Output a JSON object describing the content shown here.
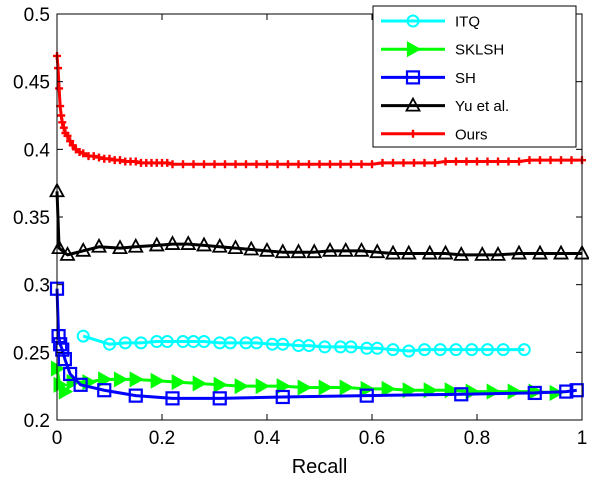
{
  "chart_data": {
    "type": "line",
    "title": "",
    "xlabel": "Recall",
    "ylabel": "",
    "xlim": [
      0,
      1
    ],
    "ylim": [
      0.2,
      0.5
    ],
    "grid": false,
    "legend_position": "top-right",
    "x_ticks": [
      "0",
      "0.2",
      "0.4",
      "0.6",
      "0.8",
      "1"
    ],
    "y_ticks": [
      "0.2",
      "0.25",
      "0.3",
      "0.35",
      "0.4",
      "0.45",
      "0.5"
    ],
    "series": [
      {
        "name": "ITQ",
        "color": "#00ffff",
        "marker": "circle",
        "x": [
          0.05,
          0.1,
          0.13,
          0.16,
          0.19,
          0.21,
          0.24,
          0.26,
          0.28,
          0.31,
          0.33,
          0.36,
          0.38,
          0.41,
          0.43,
          0.46,
          0.48,
          0.51,
          0.54,
          0.56,
          0.59,
          0.61,
          0.64,
          0.67,
          0.7,
          0.73,
          0.76,
          0.79,
          0.82,
          0.85,
          0.89
        ],
        "y": [
          0.262,
          0.256,
          0.257,
          0.257,
          0.258,
          0.258,
          0.258,
          0.258,
          0.258,
          0.257,
          0.257,
          0.257,
          0.257,
          0.256,
          0.256,
          0.255,
          0.255,
          0.254,
          0.254,
          0.254,
          0.253,
          0.253,
          0.252,
          0.251,
          0.252,
          0.252,
          0.252,
          0.252,
          0.252,
          0.252,
          0.252
        ]
      },
      {
        "name": "SKLSH",
        "color": "#00ff00",
        "marker": "triangle-right",
        "x": [
          0.0,
          0.005,
          0.015,
          0.03,
          0.06,
          0.09,
          0.12,
          0.15,
          0.19,
          0.23,
          0.27,
          0.31,
          0.35,
          0.39,
          0.43,
          0.47,
          0.51,
          0.55,
          0.59,
          0.63,
          0.67,
          0.71,
          0.75,
          0.79,
          0.83,
          0.87,
          0.91,
          0.95
        ],
        "y": [
          0.238,
          0.226,
          0.221,
          0.228,
          0.228,
          0.23,
          0.23,
          0.23,
          0.229,
          0.228,
          0.227,
          0.226,
          0.225,
          0.225,
          0.225,
          0.224,
          0.224,
          0.224,
          0.223,
          0.223,
          0.222,
          0.222,
          0.222,
          0.221,
          0.221,
          0.221,
          0.221,
          0.22
        ]
      },
      {
        "name": "SH",
        "color": "#0000ff",
        "marker": "square",
        "x": [
          0.0,
          0.003,
          0.006,
          0.01,
          0.015,
          0.025,
          0.045,
          0.09,
          0.15,
          0.22,
          0.31,
          0.43,
          0.59,
          0.77,
          0.91,
          0.97,
          0.99
        ],
        "y": [
          0.297,
          0.262,
          0.256,
          0.252,
          0.245,
          0.234,
          0.226,
          0.222,
          0.218,
          0.216,
          0.216,
          0.217,
          0.218,
          0.219,
          0.22,
          0.221,
          0.222
        ]
      },
      {
        "name": "Yu et al.",
        "color": "#000000",
        "marker": "triangle-up",
        "x": [
          0.0,
          0.004,
          0.02,
          0.05,
          0.08,
          0.12,
          0.15,
          0.19,
          0.22,
          0.25,
          0.28,
          0.31,
          0.34,
          0.37,
          0.4,
          0.43,
          0.46,
          0.49,
          0.52,
          0.55,
          0.58,
          0.61,
          0.64,
          0.67,
          0.71,
          0.74,
          0.77,
          0.81,
          0.84,
          0.88,
          0.92,
          0.96,
          1.0
        ],
        "y": [
          0.369,
          0.327,
          0.322,
          0.325,
          0.328,
          0.327,
          0.328,
          0.329,
          0.33,
          0.33,
          0.329,
          0.328,
          0.327,
          0.326,
          0.325,
          0.324,
          0.324,
          0.324,
          0.325,
          0.325,
          0.325,
          0.324,
          0.323,
          0.323,
          0.323,
          0.323,
          0.322,
          0.322,
          0.322,
          0.323,
          0.323,
          0.323,
          0.323
        ]
      },
      {
        "name": "Ours",
        "color": "#ff0000",
        "marker": "plus",
        "x": [
          0.0,
          0.002,
          0.004,
          0.006,
          0.008,
          0.01,
          0.013,
          0.016,
          0.02,
          0.025,
          0.03,
          0.036,
          0.043,
          0.05,
          0.06,
          0.07,
          0.08,
          0.09,
          0.1,
          0.11,
          0.12,
          0.13,
          0.14,
          0.15,
          0.16,
          0.17,
          0.18,
          0.19,
          0.2,
          0.21,
          0.22,
          0.24,
          0.26,
          0.28,
          0.3,
          0.32,
          0.34,
          0.36,
          0.38,
          0.4,
          0.42,
          0.44,
          0.46,
          0.48,
          0.5,
          0.52,
          0.54,
          0.56,
          0.58,
          0.6,
          0.62,
          0.64,
          0.66,
          0.68,
          0.7,
          0.72,
          0.74,
          0.76,
          0.78,
          0.8,
          0.82,
          0.84,
          0.86,
          0.88,
          0.9,
          0.92,
          0.94,
          0.96,
          0.98,
          1.0
        ],
        "y": [
          0.469,
          0.46,
          0.445,
          0.432,
          0.425,
          0.42,
          0.416,
          0.412,
          0.41,
          0.406,
          0.403,
          0.4,
          0.398,
          0.397,
          0.395,
          0.395,
          0.394,
          0.393,
          0.393,
          0.392,
          0.392,
          0.391,
          0.391,
          0.391,
          0.39,
          0.39,
          0.39,
          0.39,
          0.39,
          0.39,
          0.389,
          0.389,
          0.389,
          0.389,
          0.389,
          0.389,
          0.389,
          0.389,
          0.389,
          0.389,
          0.389,
          0.389,
          0.389,
          0.389,
          0.389,
          0.389,
          0.389,
          0.389,
          0.389,
          0.389,
          0.39,
          0.39,
          0.39,
          0.39,
          0.39,
          0.39,
          0.391,
          0.391,
          0.391,
          0.391,
          0.391,
          0.391,
          0.391,
          0.391,
          0.392,
          0.392,
          0.392,
          0.392,
          0.392,
          0.392
        ]
      }
    ]
  }
}
